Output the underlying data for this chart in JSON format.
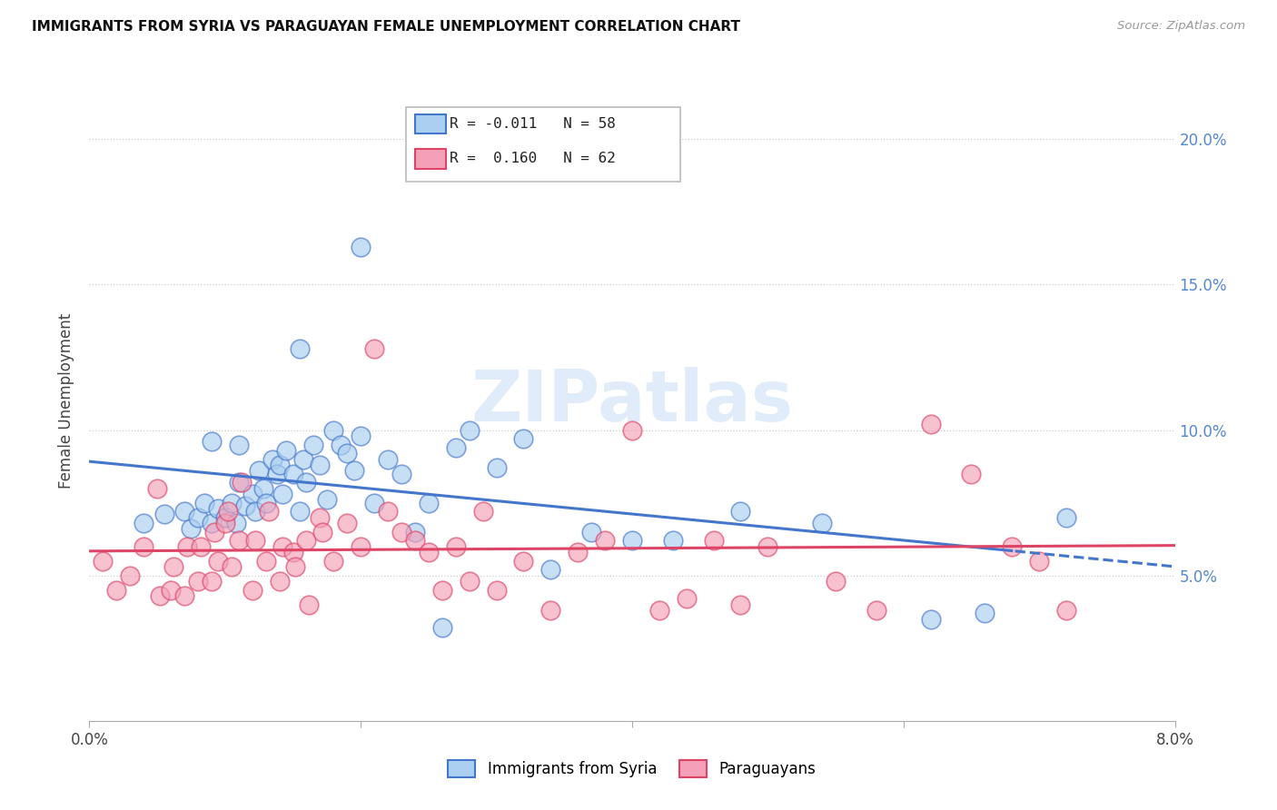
{
  "title": "IMMIGRANTS FROM SYRIA VS PARAGUAYAN FEMALE UNEMPLOYMENT CORRELATION CHART",
  "source": "Source: ZipAtlas.com",
  "ylabel": "Female Unemployment",
  "legend_series1_label": "Immigrants from Syria",
  "legend_series2_label": "Paraguayans",
  "color_blue": "#aacff0",
  "color_pink": "#f4a0b8",
  "line_blue": "#4477cc",
  "line_pink": "#dd4466",
  "blue_x": [
    0.004,
    0.0055,
    0.007,
    0.0075,
    0.008,
    0.0085,
    0.009,
    0.0095,
    0.01,
    0.0105,
    0.0108,
    0.011,
    0.0115,
    0.012,
    0.0122,
    0.0125,
    0.0128,
    0.013,
    0.0135,
    0.0138,
    0.014,
    0.0142,
    0.0145,
    0.015,
    0.0155,
    0.0158,
    0.016,
    0.0165,
    0.017,
    0.0175,
    0.018,
    0.0185,
    0.019,
    0.0195,
    0.02,
    0.021,
    0.022,
    0.023,
    0.024,
    0.025,
    0.026,
    0.027,
    0.028,
    0.03,
    0.032,
    0.034,
    0.037,
    0.04,
    0.043,
    0.048,
    0.054,
    0.062,
    0.066,
    0.072,
    0.02,
    0.0155,
    0.011,
    0.009
  ],
  "blue_y": [
    0.068,
    0.071,
    0.072,
    0.066,
    0.07,
    0.075,
    0.068,
    0.073,
    0.07,
    0.075,
    0.068,
    0.082,
    0.074,
    0.078,
    0.072,
    0.086,
    0.08,
    0.075,
    0.09,
    0.085,
    0.088,
    0.078,
    0.093,
    0.085,
    0.072,
    0.09,
    0.082,
    0.095,
    0.088,
    0.076,
    0.1,
    0.095,
    0.092,
    0.086,
    0.098,
    0.075,
    0.09,
    0.085,
    0.065,
    0.075,
    0.032,
    0.094,
    0.1,
    0.087,
    0.097,
    0.052,
    0.065,
    0.062,
    0.062,
    0.072,
    0.068,
    0.035,
    0.037,
    0.07,
    0.163,
    0.128,
    0.095,
    0.096
  ],
  "pink_x": [
    0.001,
    0.002,
    0.003,
    0.004,
    0.005,
    0.0052,
    0.006,
    0.0062,
    0.007,
    0.0072,
    0.008,
    0.0082,
    0.009,
    0.0092,
    0.0095,
    0.01,
    0.0102,
    0.0105,
    0.011,
    0.0112,
    0.012,
    0.0122,
    0.013,
    0.0132,
    0.014,
    0.0142,
    0.015,
    0.0152,
    0.016,
    0.0162,
    0.017,
    0.0172,
    0.018,
    0.019,
    0.02,
    0.021,
    0.022,
    0.023,
    0.024,
    0.025,
    0.026,
    0.027,
    0.028,
    0.029,
    0.03,
    0.032,
    0.034,
    0.036,
    0.038,
    0.04,
    0.042,
    0.044,
    0.046,
    0.048,
    0.05,
    0.055,
    0.058,
    0.062,
    0.065,
    0.068,
    0.07,
    0.072
  ],
  "pink_y": [
    0.055,
    0.045,
    0.05,
    0.06,
    0.08,
    0.043,
    0.045,
    0.053,
    0.043,
    0.06,
    0.048,
    0.06,
    0.048,
    0.065,
    0.055,
    0.068,
    0.072,
    0.053,
    0.062,
    0.082,
    0.045,
    0.062,
    0.055,
    0.072,
    0.048,
    0.06,
    0.058,
    0.053,
    0.062,
    0.04,
    0.07,
    0.065,
    0.055,
    0.068,
    0.06,
    0.128,
    0.072,
    0.065,
    0.062,
    0.058,
    0.045,
    0.06,
    0.048,
    0.072,
    0.045,
    0.055,
    0.038,
    0.058,
    0.062,
    0.1,
    0.038,
    0.042,
    0.062,
    0.04,
    0.06,
    0.048,
    0.038,
    0.102,
    0.085,
    0.06,
    0.055,
    0.038
  ]
}
